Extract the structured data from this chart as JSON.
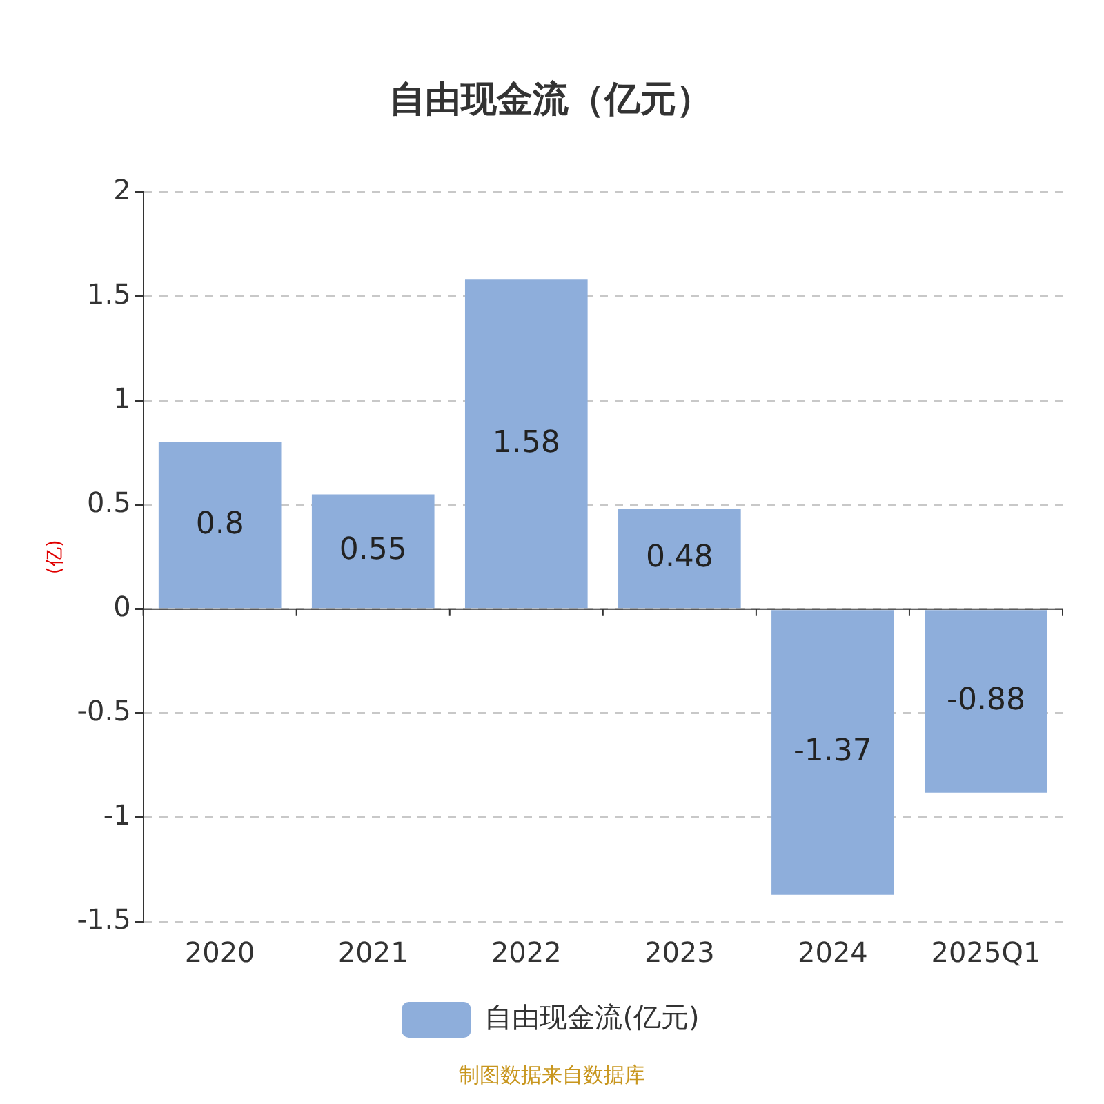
{
  "chart_data": {
    "type": "bar",
    "title": "自由现金流（亿元）",
    "ylabel": "(亿)",
    "categories": [
      "2020",
      "2021",
      "2022",
      "2023",
      "2024",
      "2025Q1"
    ],
    "series": [
      {
        "name": "自由现金流(亿元)",
        "color": "#8eaedb",
        "values": [
          0.8,
          0.55,
          1.58,
          0.48,
          -1.37,
          -0.88
        ]
      }
    ],
    "ylim": [
      -1.5,
      2
    ],
    "yticks": [
      -1.5,
      -1,
      -0.5,
      0,
      0.5,
      1,
      1.5,
      2
    ],
    "grid": "y",
    "legend": "bottom",
    "data_labels": true,
    "annotations": [
      "制图数据来自数据库"
    ]
  }
}
